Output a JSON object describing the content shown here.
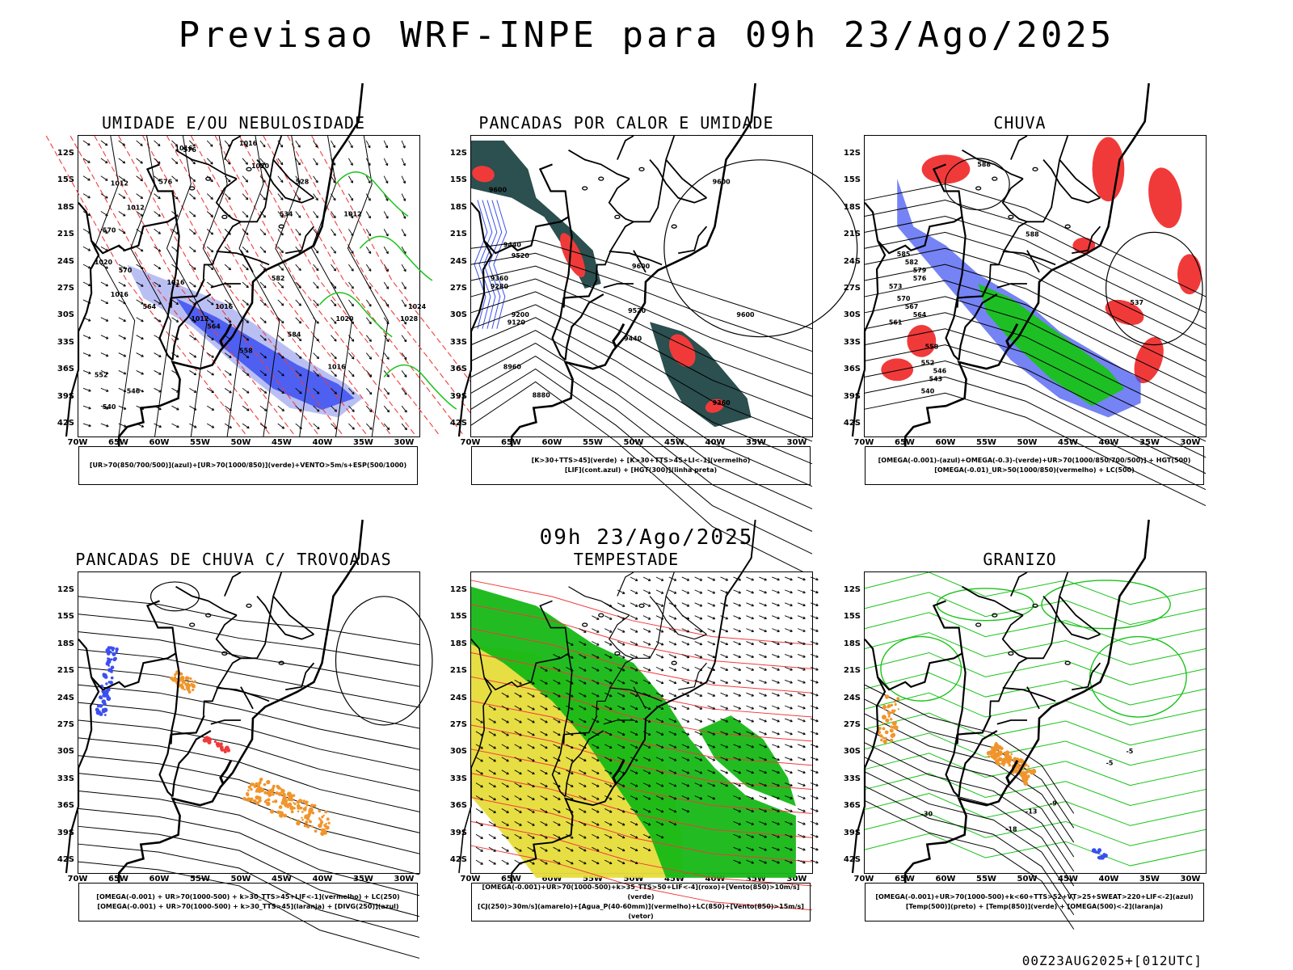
{
  "header": {
    "title": "Previsao WRF-INPE  para 09h 23/Ago/2025"
  },
  "subheader": {
    "title": "09h 23/Ago/2025"
  },
  "footer": {
    "stamp": "00Z23AUG2025+[012UTC]"
  },
  "axes": {
    "lat_ticks": [
      "12S",
      "15S",
      "18S",
      "21S",
      "24S",
      "27S",
      "30S",
      "33S",
      "36S",
      "39S",
      "42S"
    ],
    "lon_ticks": [
      "70W",
      "65W",
      "60W",
      "55W",
      "50W",
      "45W",
      "40W",
      "35W",
      "30W"
    ]
  },
  "colors": {
    "black": "#000000",
    "blue": "#3b4ff0",
    "light_blue": "#b3b8f2",
    "green": "#19c219",
    "red": "#f03a3a",
    "dark_teal": "#2c4f4f",
    "orange": "#f0952c",
    "yellow": "#e6dc3a",
    "bright_green": "#16b816",
    "purple": "#9c3ccf"
  },
  "panels": [
    {
      "id": "umidade",
      "title": "UMIDADE E/OU NEBULOSIDADE",
      "legend": [
        "[UR>70(850/700/500)](azul)+[UR>70(1000/850)](verde)+VENTO>5m/s+ESP(500/1000)"
      ],
      "contour_labels": [
        "1016",
        "1016",
        "1020",
        "1012",
        "1012",
        "1020",
        "1016",
        "1016",
        "1012",
        "1012",
        "1020",
        "1016",
        "1016",
        "1024",
        "1028",
        "576",
        "576",
        "570",
        "570",
        "564",
        "564",
        "558",
        "552",
        "546",
        "540",
        "534",
        "528",
        "582",
        "584"
      ]
    },
    {
      "id": "pancadas_calor",
      "title": "PANCADAS POR CALOR E UMIDADE",
      "legend": [
        "[K>30+TTS>45](verde) + [K>30+TTS>45+LI<-1](vermelho)",
        "[LIF](cont.azul) + [HGT(300)](linha preta)"
      ],
      "contour_labels": [
        "9600",
        "9600",
        "9520",
        "9440",
        "9360",
        "9280",
        "9200",
        "9120",
        "8960",
        "8880",
        "9600",
        "9520",
        "9440",
        "9360",
        "9600"
      ]
    },
    {
      "id": "chuva",
      "title": "CHUVA",
      "legend": [
        "[OMEGA(-0.001)-(azul)+OMEGA(-0.3)-(verde)+UR>70(1000/850/700/500)] + HGT(500)",
        "[OMEGA(-0.01)_UR>50(1000/850)(vermelho) + LC(500)"
      ],
      "contour_labels": [
        "588",
        "588",
        "585",
        "582",
        "579",
        "576",
        "573",
        "570",
        "567",
        "564",
        "561",
        "558",
        "552",
        "546",
        "543",
        "540",
        "537"
      ]
    },
    {
      "id": "pancadas_trovoadas",
      "title": "PANCADAS DE CHUVA C/ TROVOADAS",
      "legend": [
        "[OMEGA(-0.001) + UR>70(1000-500) + k>30_TTS>45+LIF<-1](vermelho) + LC(250)",
        "[OMEGA(-0.001) + UR>70(1000-500) + k>30_TTS>45](laranja) + [DIVG(250)](azul)"
      ],
      "contour_labels": []
    },
    {
      "id": "tempestade",
      "title": "TEMPESTADE",
      "legend": [
        "[OMEGA(-0.001)+UR>70(1000-500)+k>35_TTS>50+LIF<-4](roxo)+[Vento(850)>10m/s](verde)",
        "[CJ(250)>30m/s](amarelo)+[Agua_P(40-60mm)](vermelho)+LC(850)+[Vento(850)>15m/s](vetor)"
      ],
      "contour_labels": []
    },
    {
      "id": "granizo",
      "title": "GRANIZO",
      "legend": [
        "[OMEGA(-0.001)+UR>70(1000-500)+k<60+TTS>52+VT>25+SWEAT>220+LIF<-2](azul)",
        "[Temp(500)](preto) + [Temp(850)](verde) + [OMEGA(500)<-2](laranja)"
      ],
      "contour_labels": [
        "-5",
        "-5",
        "-30",
        "-18",
        "-13",
        "-9"
      ]
    }
  ]
}
